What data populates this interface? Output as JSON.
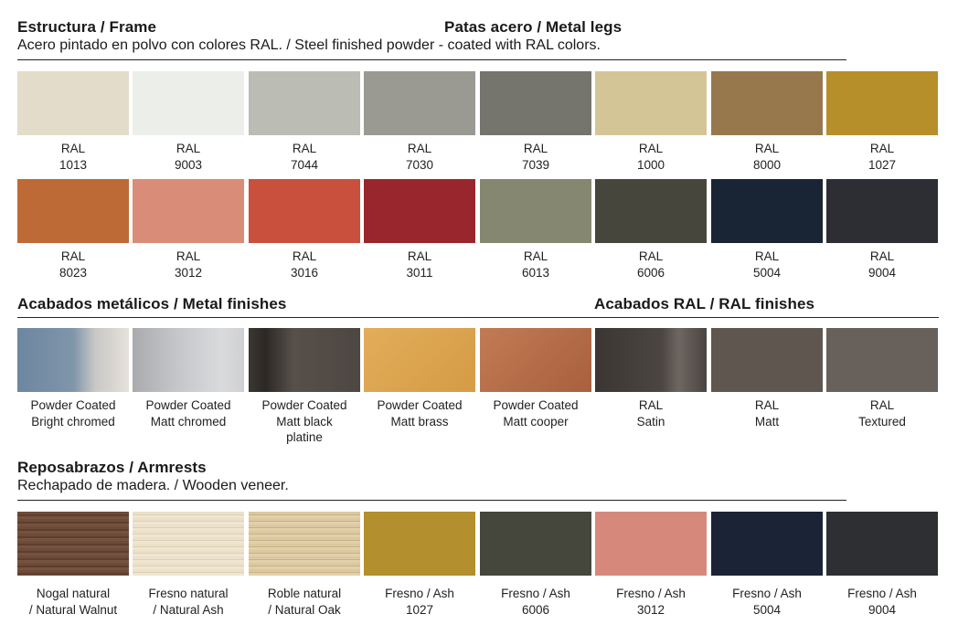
{
  "sections": {
    "frame_title": "Estructura / Frame",
    "legs_title": "Patas acero / Metal legs",
    "frame_subtitle": "Acero pintado en polvo con colores RAL. / Steel finished powder - coated with RAL colors.",
    "metal_title": "Acabados metálicos / Metal finishes",
    "ral_title": "Acabados RAL / RAL finishes",
    "armrests_title": "Reposabrazos / Armrests",
    "armrests_subtitle": "Rechapado de madera. / Wooden veneer."
  },
  "ral_row1": [
    {
      "lines": [
        "RAL",
        "1013"
      ],
      "color": "#e4dccb"
    },
    {
      "lines": [
        "RAL",
        "9003"
      ],
      "color": "#eceeea"
    },
    {
      "lines": [
        "RAL",
        "7044"
      ],
      "color": "#bbbcb3"
    },
    {
      "lines": [
        "RAL",
        "7030"
      ],
      "color": "#9a9a92"
    },
    {
      "lines": [
        "RAL",
        "7039"
      ],
      "color": "#75756d"
    },
    {
      "lines": [
        "RAL",
        "1000"
      ],
      "color": "#d4c597"
    },
    {
      "lines": [
        "RAL",
        "8000"
      ],
      "color": "#97784d"
    },
    {
      "lines": [
        "RAL",
        "1027"
      ],
      "color": "#b68f2a"
    }
  ],
  "ral_row2": [
    {
      "lines": [
        "RAL",
        "8023"
      ],
      "color": "#bd6a36"
    },
    {
      "lines": [
        "RAL",
        "3012"
      ],
      "color": "#d98d78"
    },
    {
      "lines": [
        "RAL",
        "3016"
      ],
      "color": "#c9503c"
    },
    {
      "lines": [
        "RAL",
        "3011"
      ],
      "color": "#9a262d"
    },
    {
      "lines": [
        "RAL",
        "6013"
      ],
      "color": "#858770"
    },
    {
      "lines": [
        "RAL",
        "6006"
      ],
      "color": "#46463c"
    },
    {
      "lines": [
        "RAL",
        "5004"
      ],
      "color": "#192434"
    },
    {
      "lines": [
        "RAL",
        "9004"
      ],
      "color": "#2c2e33"
    }
  ],
  "finishes": [
    {
      "lines": [
        "Powder Coated",
        "Bright chromed"
      ],
      "color": "linear-gradient(90deg,#6d87a0 0%,#7f95aa 50%,#c9c8c6 70%,#e6e1da 100%)"
    },
    {
      "lines": [
        "Powder Coated",
        "Matt chromed"
      ],
      "color": "linear-gradient(90deg,#a9abae,#c4c6c9 40%,#d9dadc 80%,#cfd0d2)"
    },
    {
      "lines": [
        "Powder Coated",
        "Matt black",
        "platine"
      ],
      "color": "linear-gradient(90deg,#3c3733,#2c2825 15%,#57504a 40%,#4d4742 100%)"
    },
    {
      "lines": [
        "Powder Coated",
        "Matt brass"
      ],
      "color": "linear-gradient(135deg,#e2ad5a,#d59b45)"
    },
    {
      "lines": [
        "Powder Coated",
        "Matt cooper"
      ],
      "color": "linear-gradient(135deg,#c17b54,#a8603e)"
    },
    {
      "lines": [
        "RAL",
        "Satin"
      ],
      "color": "linear-gradient(90deg,#3b3633,#4c4642 60%,#6e6661 75%,#4a4440)"
    },
    {
      "lines": [
        "RAL",
        "Matt"
      ],
      "color": "#5f574f"
    },
    {
      "lines": [
        "RAL",
        "Textured"
      ],
      "color": "#67605b"
    }
  ],
  "armrests": [
    {
      "lines": [
        "Nogal natural",
        "/ Natural Walnut"
      ],
      "color": "repeating-linear-gradient(180deg,#6e4b39 0 3px,#5d3e2f 3px 5px,#775241 5px 8px)"
    },
    {
      "lines": [
        "Fresno natural",
        "/ Natural Ash"
      ],
      "color": "repeating-linear-gradient(180deg,#ebe0c9 0 3px,#ddd0b4 3px 4px,#efe6d2 4px 7px)"
    },
    {
      "lines": [
        "Roble natural",
        "/ Natural Oak"
      ],
      "color": "repeating-linear-gradient(180deg,#dcc8a0 0 3px,#c9b283 3px 4px,#e2d0ac 4px 7px)"
    },
    {
      "lines": [
        "Fresno / Ash",
        "1027"
      ],
      "color": "#b38f2d"
    },
    {
      "lines": [
        "Fresno / Ash",
        "6006"
      ],
      "color": "#45463c"
    },
    {
      "lines": [
        "Fresno / Ash",
        "3012"
      ],
      "color": "#d6897a"
    },
    {
      "lines": [
        "Fresno / Ash",
        "5004"
      ],
      "color": "#1a2436"
    },
    {
      "lines": [
        "Fresno / Ash",
        "9004"
      ],
      "color": "#2d2f33"
    }
  ]
}
